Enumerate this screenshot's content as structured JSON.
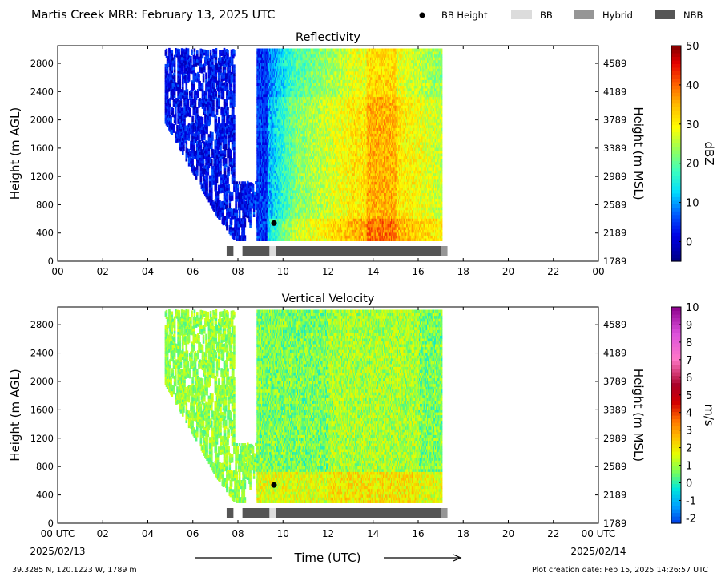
{
  "header": {
    "title": "Martis Creek MRR:  February 13, 2025 UTC",
    "legend": [
      {
        "label": "BB Height",
        "kind": "dot",
        "color": "#000000"
      },
      {
        "label": "BB",
        "kind": "bar",
        "color": "#dcdcdc"
      },
      {
        "label": "Hybrid",
        "kind": "bar",
        "color": "#969696"
      },
      {
        "label": "NBB",
        "kind": "bar",
        "color": "#555555"
      }
    ]
  },
  "footer": {
    "location": "39.3285 N, 120.1223 W, 1789 m",
    "creation": "Plot creation date: Feb 15, 2025 14:26:57 UTC",
    "date_start": "2025/02/13",
    "date_end": "2025/02/14"
  },
  "chart_data": [
    {
      "type": "heatmap",
      "title": "Reflectivity",
      "xlabel": "",
      "ylabel": "Height (m AGL)",
      "y2label": "Height (m MSL)",
      "xlim": [
        0,
        24
      ],
      "ylim": [
        0,
        3050
      ],
      "x_ticks": [
        "00",
        "02",
        "04",
        "06",
        "08",
        "10",
        "12",
        "14",
        "16",
        "18",
        "20",
        "22",
        "00"
      ],
      "y_ticks": [
        0,
        400,
        800,
        1200,
        1600,
        2000,
        2400,
        2800
      ],
      "y2_ticks": [
        "1789",
        "2189",
        "2589",
        "2989",
        "3389",
        "3789",
        "4189",
        "4589"
      ],
      "colorbar": {
        "label": "dBZ",
        "min": -5,
        "max": 50,
        "ticks": [
          0,
          10,
          20,
          30,
          40,
          50
        ]
      },
      "bb_height": {
        "x": 9.6,
        "y": 540
      },
      "bb_type_bar": [
        {
          "start": 7.5,
          "end": 7.8,
          "type": "NBB"
        },
        {
          "start": 8.2,
          "end": 9.4,
          "type": "NBB"
        },
        {
          "start": 9.4,
          "end": 9.7,
          "type": "BB"
        },
        {
          "start": 9.7,
          "end": 17.0,
          "type": "NBB"
        },
        {
          "start": 17.0,
          "end": 17.3,
          "type": "Hybrid"
        }
      ]
    },
    {
      "type": "heatmap",
      "title": "Vertical Velocity",
      "xlabel": "Time (UTC)",
      "ylabel": "Height (m AGL)",
      "y2label": "Height (m MSL)",
      "xlim": [
        0,
        24
      ],
      "ylim": [
        0,
        3050
      ],
      "x_ticks": [
        "00 UTC",
        "02",
        "04",
        "06",
        "08",
        "10",
        "12",
        "14",
        "16",
        "18",
        "20",
        "22",
        "00 UTC"
      ],
      "y_ticks": [
        0,
        400,
        800,
        1200,
        1600,
        2000,
        2400,
        2800
      ],
      "y2_ticks": [
        "1789",
        "2189",
        "2589",
        "2989",
        "3389",
        "3789",
        "4189",
        "4589"
      ],
      "colorbar": {
        "label": "m/s",
        "min": -2.3,
        "max": 10,
        "ticks": [
          -2,
          -1,
          0,
          1,
          2,
          3,
          4,
          5,
          6,
          7,
          8,
          9,
          10
        ]
      },
      "bb_height": {
        "x": 9.6,
        "y": 540
      },
      "bb_type_bar": [
        {
          "start": 7.5,
          "end": 7.8,
          "type": "NBB"
        },
        {
          "start": 8.2,
          "end": 9.4,
          "type": "NBB"
        },
        {
          "start": 9.4,
          "end": 9.7,
          "type": "BB"
        },
        {
          "start": 9.7,
          "end": 17.0,
          "type": "NBB"
        },
        {
          "start": 17.0,
          "end": 17.3,
          "type": "Hybrid"
        }
      ]
    }
  ]
}
